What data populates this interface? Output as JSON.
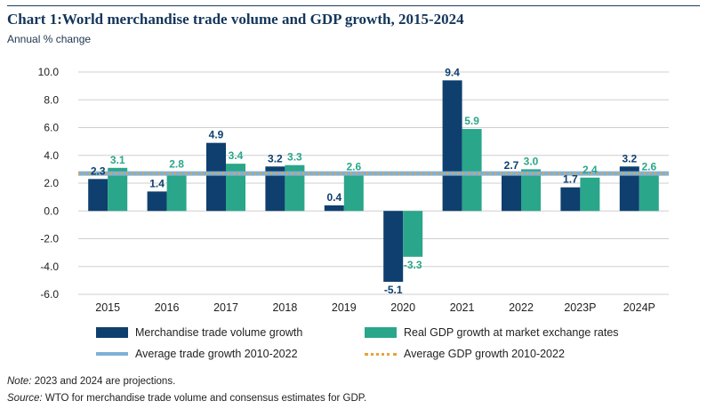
{
  "title": "Chart 1:World merchandise trade volume and GDP growth, 2015-2024",
  "subtitle": "Annual % change",
  "chart_data": {
    "type": "bar",
    "categories": [
      "2015",
      "2016",
      "2017",
      "2018",
      "2019",
      "2020",
      "2021",
      "2022",
      "2023P",
      "2024P"
    ],
    "series": [
      {
        "name": "Merchandise trade volume growth",
        "color": "#0e3f6e",
        "values": [
          2.3,
          1.4,
          4.9,
          3.2,
          0.4,
          -5.1,
          9.4,
          2.7,
          1.7,
          3.2
        ],
        "labels": [
          "2.3",
          "1.4",
          "4.9",
          "3.2",
          "0.4",
          "-5.1",
          "9.4",
          "2.7",
          "1.7",
          "3.2"
        ]
      },
      {
        "name": "Real GDP growth at market exchange rates",
        "color": "#2aa68a",
        "values": [
          3.1,
          2.8,
          3.4,
          3.3,
          2.6,
          -3.3,
          5.9,
          3.0,
          2.4,
          2.6
        ],
        "labels": [
          "3.1",
          "2.8",
          "3.4",
          "3.3",
          "2.6",
          "-3.3",
          "5.9",
          "3.0",
          "2.4",
          "2.6"
        ]
      }
    ],
    "reference_lines": [
      {
        "name": "Average trade growth 2010-2022",
        "value": 2.7,
        "color": "#7fb0d6",
        "style": "solid"
      },
      {
        "name": "Average GDP growth 2010-2022",
        "value": 2.7,
        "color": "#e8a33a",
        "style": "dotted"
      }
    ],
    "ylim": [
      -6.0,
      10.0
    ],
    "yticks": [
      10.0,
      8.0,
      6.0,
      4.0,
      2.0,
      0.0,
      -2.0,
      -4.0,
      -6.0
    ],
    "ytick_labels": [
      "10.0",
      "8.0",
      "6.0",
      "4.0",
      "2.0",
      "0.0",
      "-2.0",
      "-4.0",
      "-6.0"
    ],
    "grid": true,
    "xlabel": "",
    "ylabel": ""
  },
  "legend": {
    "trade": "Merchandise trade volume growth",
    "gdp": "Real GDP growth at market exchange rates",
    "avg_trade": "Average trade growth 2010-2022",
    "avg_gdp": "Average GDP growth 2010-2022"
  },
  "notes": {
    "note_label": "Note:",
    "note_text": " 2023 and 2024 are projections.",
    "source_label": "Source:",
    "source_text": " WTO for merchandise trade volume and consensus estimates for GDP."
  }
}
